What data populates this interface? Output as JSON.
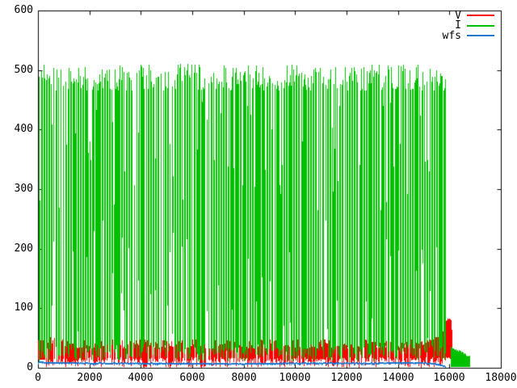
{
  "chart_data": {
    "type": "line",
    "title": "",
    "xlabel": "",
    "ylabel": "",
    "xlim": [
      0,
      18000
    ],
    "ylim": [
      0,
      600
    ],
    "xticks": [
      0,
      2000,
      4000,
      6000,
      8000,
      10000,
      12000,
      14000,
      16000,
      18000
    ],
    "yticks": [
      0,
      100,
      200,
      300,
      400,
      500,
      600
    ],
    "grid": false,
    "background": "#ffffff",
    "axis_color": "#000000",
    "legend_position": "top-right-inside",
    "series": [
      {
        "name": "V",
        "color": "#ff0000",
        "style": "noisy-band",
        "description": "noisy band ~15-45 with frequent down-spikes to 0; solid 13-46 at far left; rises after x~15250 to peak ~84 at x~15900-16080 then ends",
        "x_range": [
          0,
          16080
        ],
        "band_top_mean": 40,
        "band_top_jitter": 8,
        "band_bottom_base": 14,
        "band_bottom_jitter": 8,
        "downspike_prob": 0.45,
        "downspike_max": 10,
        "left_solid_until": 260,
        "ramp": {
          "start_x": 15250,
          "start_top": 40,
          "end_top": 62
        },
        "end_peak": {
          "x_range": [
            15860,
            16080
          ],
          "top": 84,
          "bottom": 15
        }
      },
      {
        "name": "I",
        "color": "#00c000",
        "style": "dense-oscillation",
        "description": "dense oscillating signal filling plot; sample tops mostly 465-510 with dropouts to 260-460; bottoms 10-40 with white streaks up to ~260; ends x~15820; low tail block after 16040",
        "x_range": [
          40,
          15820
        ],
        "top_range": [
          465,
          510
        ],
        "top_dropout": {
          "prob": 0.17,
          "range": [
            260,
            460
          ]
        },
        "bottom_range": [
          10,
          40
        ],
        "bottom_streak": {
          "prob": 0.13,
          "range": [
            45,
            260
          ]
        },
        "column_gap_prob": 0.3,
        "tail_block": {
          "x_range": [
            16040,
            16760
          ],
          "top_start": 34,
          "top_end": 20,
          "bottom": 1
        }
      },
      {
        "name": "wfs",
        "color": "#1878d2",
        "style": "line",
        "line_width": 2,
        "x": [
          0,
          500,
          1000,
          2000,
          4000,
          6000,
          8000,
          10000,
          12000,
          13000,
          14000,
          15000,
          15500,
          15820
        ],
        "values": [
          9.5,
          8.5,
          8.0,
          7.5,
          7.0,
          7.0,
          6.5,
          7.5,
          7.5,
          7.5,
          8.0,
          8.0,
          6.0,
          2.0
        ]
      }
    ]
  }
}
